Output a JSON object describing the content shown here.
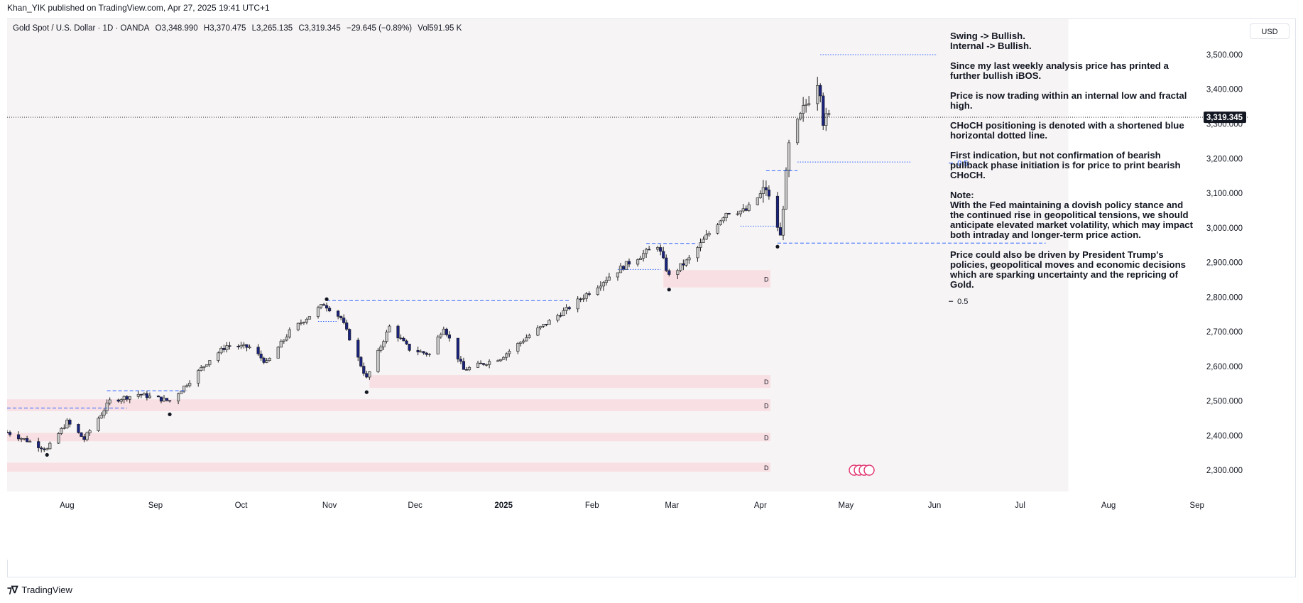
{
  "header": {
    "publisher": "Khan_YIK published on TradingView.com, Apr 27, 2025 19:41 UTC+1"
  },
  "legend": {
    "symbol": "Gold Spot / U.S. Dollar · 1D · OANDA",
    "open": "O3,348.990",
    "high": "H3,370.475",
    "low": "L3,265.135",
    "close": "C3,319.345",
    "change": "−29.645 (−0.89%)",
    "volume": "Vol591.95 K"
  },
  "currency_button": "USD",
  "last_price_label": "3,319.345",
  "notes": [
    "Swing -> Bullish.\nInternal -> Bullish.",
    "Since my last weekly analysis price has printed a further bullish iBOS.",
    "Price is now trading within an internal low and fractal high.",
    "CHoCH positioning is denoted with a shortened blue horizontal dotted line.",
    "First indication, but not confirmation of bearish pullback phase initiation is for price to print bearish CHoCH.",
    "Note:\nWith the Fed maintaining a dovish policy stance and the continued rise in geopolitical tensions, we should anticipate elevated market volatility, which may impact both intraday and longer-term price action.",
    "Price could also be driven by President Trump's policies, geopolitical moves and economic decisions which are sparking uncertainty and the repricing of Gold."
  ],
  "footer": {
    "brand": "TradingView",
    "logo": "tradingview-logo-icon"
  },
  "colors": {
    "bull_candle": "#c9c9c9",
    "bear_candle": "#1a237e",
    "candle_border": "#1f1f1f",
    "zone": "#f8dfe3",
    "structure_line": "#2962ff",
    "background": "#f7f4f5"
  },
  "chart_data": {
    "type": "candlestick",
    "symbol": "XAUUSD",
    "interval": "1D",
    "y_axis_ticks": [
      "3,500.000",
      "3,400.000",
      "3,300.000",
      "3,200.000",
      "3,100.000",
      "3,000.000",
      "2,900.000",
      "2,800.000",
      "2,700.000",
      "2,600.000",
      "2,500.000",
      "2,400.000",
      "2,300.000"
    ],
    "ylim": [
      2280,
      3545
    ],
    "x_axis_ticks": [
      {
        "label": "Aug",
        "date": "2024-08-01"
      },
      {
        "label": "Sep",
        "date": "2024-09-01"
      },
      {
        "label": "Oct",
        "date": "2024-10-01"
      },
      {
        "label": "Nov",
        "date": "2024-11-01"
      },
      {
        "label": "Dec",
        "date": "2024-12-01"
      },
      {
        "label": "2025",
        "date": "2025-01-01",
        "bold": true
      },
      {
        "label": "Feb",
        "date": "2025-02-01"
      },
      {
        "label": "Mar",
        "date": "2025-03-01"
      },
      {
        "label": "Apr",
        "date": "2025-04-01"
      },
      {
        "label": "May",
        "date": "2025-05-01"
      },
      {
        "label": "Jun",
        "date": "2025-06-01"
      },
      {
        "label": "Jul",
        "date": "2025-07-01"
      },
      {
        "label": "Aug",
        "date": "2025-08-01"
      },
      {
        "label": "Sep",
        "date": "2025-09-01"
      }
    ],
    "xlim": [
      "2024-07-11",
      "2025-09-19"
    ],
    "price_path": [
      [
        "2024-07-11",
        2410
      ],
      [
        "2024-07-17",
        2390
      ],
      [
        "2024-07-25",
        2360
      ],
      [
        "2024-08-01",
        2440
      ],
      [
        "2024-08-07",
        2390
      ],
      [
        "2024-08-16",
        2500
      ],
      [
        "2024-08-26",
        2520
      ],
      [
        "2024-09-06",
        2500
      ],
      [
        "2024-09-12",
        2550
      ],
      [
        "2024-09-20",
        2620
      ],
      [
        "2024-09-26",
        2660
      ],
      [
        "2024-10-04",
        2655
      ],
      [
        "2024-10-10",
        2610
      ],
      [
        "2024-10-18",
        2700
      ],
      [
        "2024-10-30",
        2780
      ],
      [
        "2024-11-05",
        2740
      ],
      [
        "2024-11-14",
        2565
      ],
      [
        "2024-11-22",
        2715
      ],
      [
        "2024-11-29",
        2650
      ],
      [
        "2024-12-06",
        2635
      ],
      [
        "2024-12-11",
        2715
      ],
      [
        "2024-12-18",
        2590
      ],
      [
        "2024-12-31",
        2625
      ],
      [
        "2025-01-10",
        2690
      ],
      [
        "2025-01-24",
        2770
      ],
      [
        "2025-02-07",
        2860
      ],
      [
        "2025-02-14",
        2900
      ],
      [
        "2025-02-24",
        2950
      ],
      [
        "2025-02-28",
        2860
      ],
      [
        "2025-03-07",
        2910
      ],
      [
        "2025-03-14",
        2985
      ],
      [
        "2025-03-20",
        3045
      ],
      [
        "2025-03-27",
        3050
      ],
      [
        "2025-04-03",
        3115
      ],
      [
        "2025-04-08",
        2975
      ],
      [
        "2025-04-11",
        3235
      ],
      [
        "2025-04-16",
        3340
      ],
      [
        "2025-04-21",
        3425
      ],
      [
        "2025-04-22",
        3400
      ],
      [
        "2025-04-23",
        3310
      ],
      [
        "2025-04-25",
        3319
      ]
    ],
    "last_price": 3319.345,
    "demand_zones": [
      {
        "from": "2025-02-26",
        "top": 2878,
        "bottom": 2828,
        "label": "D"
      },
      {
        "from": "2024-11-15",
        "top": 2575,
        "bottom": 2538,
        "label": "D"
      },
      {
        "from": "2024-07-11",
        "top": 2505,
        "bottom": 2471,
        "label": "D"
      },
      {
        "from": "2024-07-11",
        "top": 2408,
        "bottom": 2384,
        "label": "D"
      },
      {
        "from": "2024-07-11",
        "top": 2322,
        "bottom": 2296,
        "label": "D"
      }
    ],
    "structure_lines": [
      {
        "from": "2024-07-11",
        "to": "2024-08-22",
        "price": 2480,
        "style": "dashed"
      },
      {
        "from": "2024-08-15",
        "to": "2024-09-12",
        "price": 2530,
        "style": "dashed"
      },
      {
        "from": "2024-10-31",
        "to": "2025-01-24",
        "price": 2790,
        "style": "dashed"
      },
      {
        "from": "2025-02-20",
        "to": "2025-03-10",
        "price": 2955,
        "style": "dashed"
      },
      {
        "from": "2025-04-07",
        "to": "2025-07-10",
        "price": 2956,
        "style": "dashed"
      },
      {
        "from": "2025-04-03",
        "to": "2025-04-14",
        "price": 3165,
        "style": "dashed"
      },
      {
        "from": "2025-04-22",
        "to": "2025-06-02",
        "price": 3500,
        "style": "dotted"
      },
      {
        "from": "2025-04-14",
        "to": "2025-05-24",
        "price": 3190,
        "style": "dotted"
      },
      {
        "from": "2025-02-10",
        "to": "2025-02-25",
        "price": 2880,
        "style": "dotted"
      },
      {
        "from": "2025-03-25",
        "to": "2025-04-07",
        "price": 3005,
        "style": "dotted"
      },
      {
        "from": "2024-10-28",
        "to": "2024-11-04",
        "price": 2730,
        "style": "dotted"
      }
    ],
    "swing_points": [
      {
        "date": "2024-07-25",
        "price": 2355
      },
      {
        "date": "2024-09-06",
        "price": 2472
      },
      {
        "date": "2024-11-14",
        "price": 2536
      },
      {
        "date": "2025-02-28",
        "price": 2832
      },
      {
        "date": "2025-04-07",
        "price": 2956
      },
      {
        "date": "2024-10-31",
        "price": 2790
      }
    ],
    "fib_labels": [
      {
        "date": "2025-06-08",
        "price": 3187,
        "text": "0.5"
      },
      {
        "date": "2025-06-08",
        "price": 2788,
        "text": "0.5"
      }
    ]
  }
}
